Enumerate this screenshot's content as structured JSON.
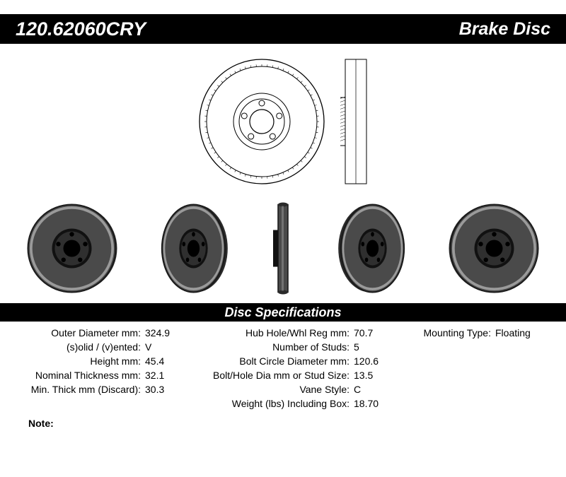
{
  "header": {
    "part_number": "120.62060CRY",
    "product_type": "Brake Disc"
  },
  "spec_title": "Disc Specifications",
  "note_label": "Note:",
  "note_text": "",
  "specs": {
    "left": [
      {
        "label": "Outer Diameter mm:",
        "value": "324.9"
      },
      {
        "label": "(s)olid / (v)ented:",
        "value": "V"
      },
      {
        "label": "Height mm:",
        "value": "45.4"
      },
      {
        "label": "Nominal Thickness mm:",
        "value": "32.1"
      },
      {
        "label": "Min. Thick mm (Discard):",
        "value": "30.3"
      }
    ],
    "mid": [
      {
        "label": "Hub Hole/Whl Reg mm:",
        "value": "70.7"
      },
      {
        "label": "Number of Studs:",
        "value": "5"
      },
      {
        "label": "Bolt Circle Diameter mm:",
        "value": "120.6"
      },
      {
        "label": "Bolt/Hole Dia mm or Stud Size:",
        "value": "13.5"
      },
      {
        "label": "Vane Style:",
        "value": "C"
      },
      {
        "label": "Weight (lbs) Including Box:",
        "value": "18.70"
      }
    ],
    "right": [
      {
        "label": "Mounting Type:",
        "value": "Floating"
      }
    ]
  },
  "drawing": {
    "stroke_color": "#000000",
    "fill_color": "#ffffff",
    "rotor_outer_r": 88,
    "rotor_inner_r": 78,
    "hat_lip_r": 40,
    "hat_face_r": 32,
    "hub_hole_r": 17,
    "stud_hole_r": 4,
    "stud_pcd_r": 26,
    "stud_count": 5,
    "side_height": 176,
    "side_width": 30,
    "side_hat_width": 18,
    "side_hat_depth": 12
  },
  "photos": {
    "rotor_color": "#4a4a4a",
    "rotor_highlight": "#9a9a9a",
    "hub_color": "#111111",
    "hole_color": "#000000",
    "views": [
      "front-flat",
      "front-angled",
      "edge",
      "rear-angled",
      "rear-flat"
    ]
  }
}
